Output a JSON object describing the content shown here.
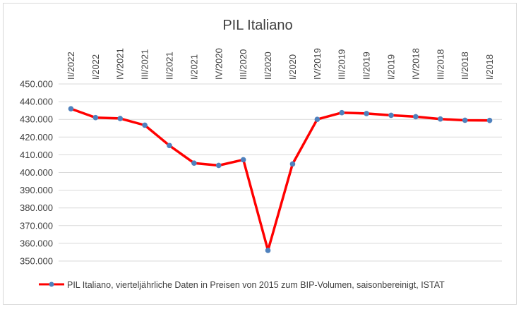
{
  "chart_data": {
    "type": "line",
    "title": "PIL Italiano",
    "categories": [
      "II/2022",
      "I/2022",
      "IV/2021",
      "III/2021",
      "II/2021",
      "I/2021",
      "IV/2020",
      "III/2020",
      "II/2020",
      "I/2020",
      "IV/2019",
      "III/2019",
      "II/2019",
      "I/2019",
      "IV/2018",
      "III/2018",
      "II/2018",
      "I/2018"
    ],
    "series": [
      {
        "name": "PIL Italiano, vierteljährliche Daten in Preisen von 2015 zum BIP-Volumen, saisonbereinigt, ISTAT",
        "color": "#ff0000",
        "marker_color": "#4f81bd",
        "values": [
          436000,
          431000,
          430500,
          426700,
          415200,
          405300,
          404000,
          407200,
          356000,
          404800,
          430000,
          433800,
          433300,
          432300,
          431500,
          430200,
          429500,
          429400
        ]
      }
    ],
    "y_ticks": [
      "450.000",
      "440.000",
      "430.000",
      "420.000",
      "410.000",
      "400.000",
      "390.000",
      "380.000",
      "370.000",
      "360.000",
      "350.000"
    ],
    "ylim": [
      350000,
      450000
    ],
    "grid": "horizontal",
    "legend": "bottom"
  }
}
